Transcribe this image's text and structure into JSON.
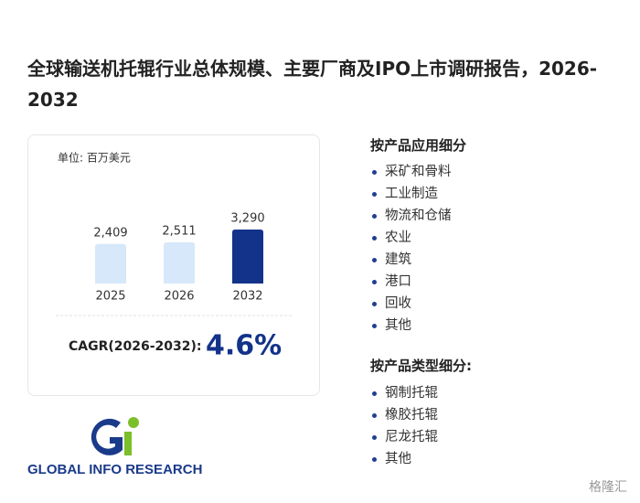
{
  "title": "全球输送机托辊行业总体规模、主要厂商及IPO上市调研报告，2026-2032",
  "chart_data": {
    "type": "bar",
    "unit_label": "单位: 百万美元",
    "categories": [
      "2025",
      "2026",
      "2032"
    ],
    "values": [
      2409,
      2511,
      3290
    ],
    "value_labels": [
      "2,409",
      "2,511",
      "3,290"
    ],
    "colors": [
      "#d6e8fa",
      "#d6e8fa",
      "#13328a"
    ],
    "cagr_label": "CAGR(2026-2032):",
    "cagr_value": "4.6%"
  },
  "application_section": {
    "title": "按产品应用细分",
    "items": [
      "采矿和骨料",
      "工业制造",
      "物流和仓储",
      "农业",
      "建筑",
      "港口",
      "回收",
      "其他"
    ]
  },
  "type_section": {
    "title": "按产品类型细分:",
    "items": [
      "钢制托辊",
      "橡胶托辊",
      "尼龙托辊",
      "其他"
    ]
  },
  "logo_text": "GLOBAL INFO RESEARCH",
  "source_mark": "格隆汇"
}
